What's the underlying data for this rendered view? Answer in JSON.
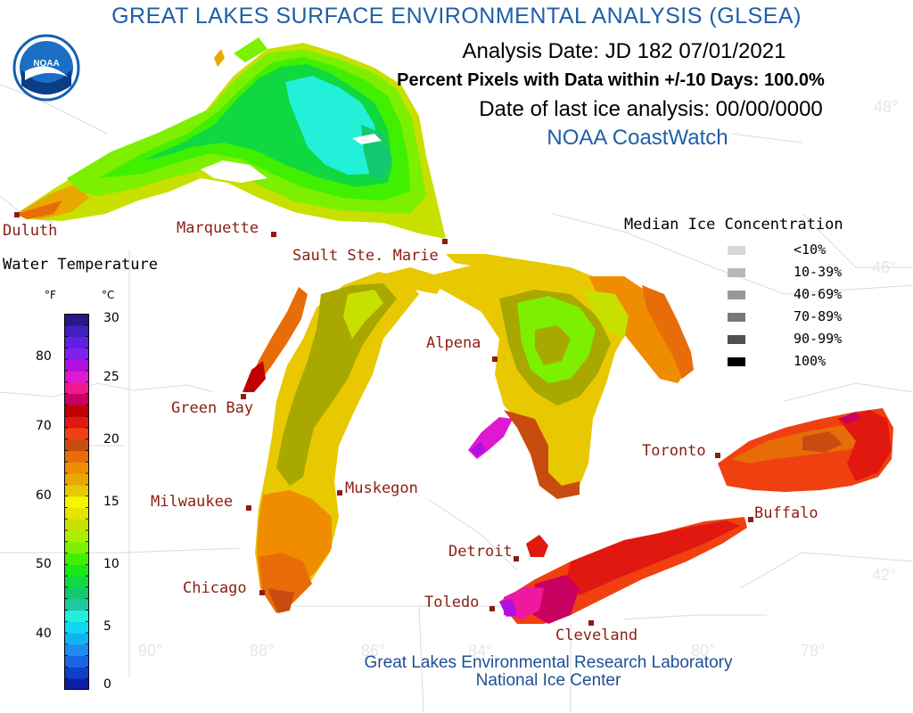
{
  "header": {
    "title": "GREAT LAKES SURFACE ENVIRONMENTAL ANALYSIS (GLSEA)",
    "analysis_date": "Analysis Date:  JD 182 07/01/2021",
    "percent_pixels": "Percent Pixels with Data within +/-10 Days: 100.0%",
    "last_ice": "Date of last ice analysis: 00/00/0000",
    "source": "NOAA CoastWatch"
  },
  "logo": {
    "text": "NOAA",
    "icon": "noaa-logo"
  },
  "footer": {
    "line1": "Great Lakes Environmental Research Laboratory",
    "line2": "National Ice Center"
  },
  "cities": [
    {
      "name": "Duluth"
    },
    {
      "name": "Marquette"
    },
    {
      "name": "Sault Ste. Marie"
    },
    {
      "name": "Green Bay"
    },
    {
      "name": "Alpena"
    },
    {
      "name": "Milwaukee"
    },
    {
      "name": "Muskegon"
    },
    {
      "name": "Toronto"
    },
    {
      "name": "Buffalo"
    },
    {
      "name": "Detroit"
    },
    {
      "name": "Chicago"
    },
    {
      "name": "Toledo"
    },
    {
      "name": "Cleveland"
    }
  ],
  "coords": {
    "lat": [
      "48°",
      "46°",
      "42°"
    ],
    "lon": [
      "90°",
      "88°",
      "86°",
      "84°",
      "80°",
      "78°"
    ]
  },
  "water_legend": {
    "title": "Water Temperature",
    "unit_f": "°F",
    "unit_c": "°C",
    "f_ticks": [
      "80",
      "70",
      "60",
      "50",
      "40"
    ],
    "c_ticks": [
      "30",
      "25",
      "20",
      "15",
      "10",
      "5",
      "0"
    ],
    "colors_bottom_to_top": [
      "#0a1ea8",
      "#1040c8",
      "#1a64e0",
      "#1e8cf0",
      "#12b4f0",
      "#10d8f0",
      "#22f0d8",
      "#20c8a0",
      "#14c870",
      "#10d840",
      "#18e818",
      "#40f000",
      "#7cf000",
      "#a8f000",
      "#c8e000",
      "#e4e400",
      "#f8f400",
      "#e8c800",
      "#e8a800",
      "#f08c00",
      "#e86c08",
      "#c84c10",
      "#f04010",
      "#e01810",
      "#c00000",
      "#c80060",
      "#f01890",
      "#e018d0",
      "#b010e0",
      "#8020f0",
      "#6020e0",
      "#4020c0",
      "#281888"
    ]
  },
  "ice_legend": {
    "title": "Median Ice Concentration",
    "items": [
      {
        "label": "<10%",
        "color": "#d8d8d8"
      },
      {
        "label": "10-39%",
        "color": "#b8b8b8"
      },
      {
        "label": "40-69%",
        "color": "#989898"
      },
      {
        "label": "70-89%",
        "color": "#787878"
      },
      {
        "label": "90-99%",
        "color": "#505050"
      },
      {
        "label": "100%",
        "color": "#000000"
      }
    ]
  },
  "palette": {
    "title_blue": "#1f5fa8",
    "city_red": "#8a1e12",
    "border_gray": "#d4dbe6"
  }
}
